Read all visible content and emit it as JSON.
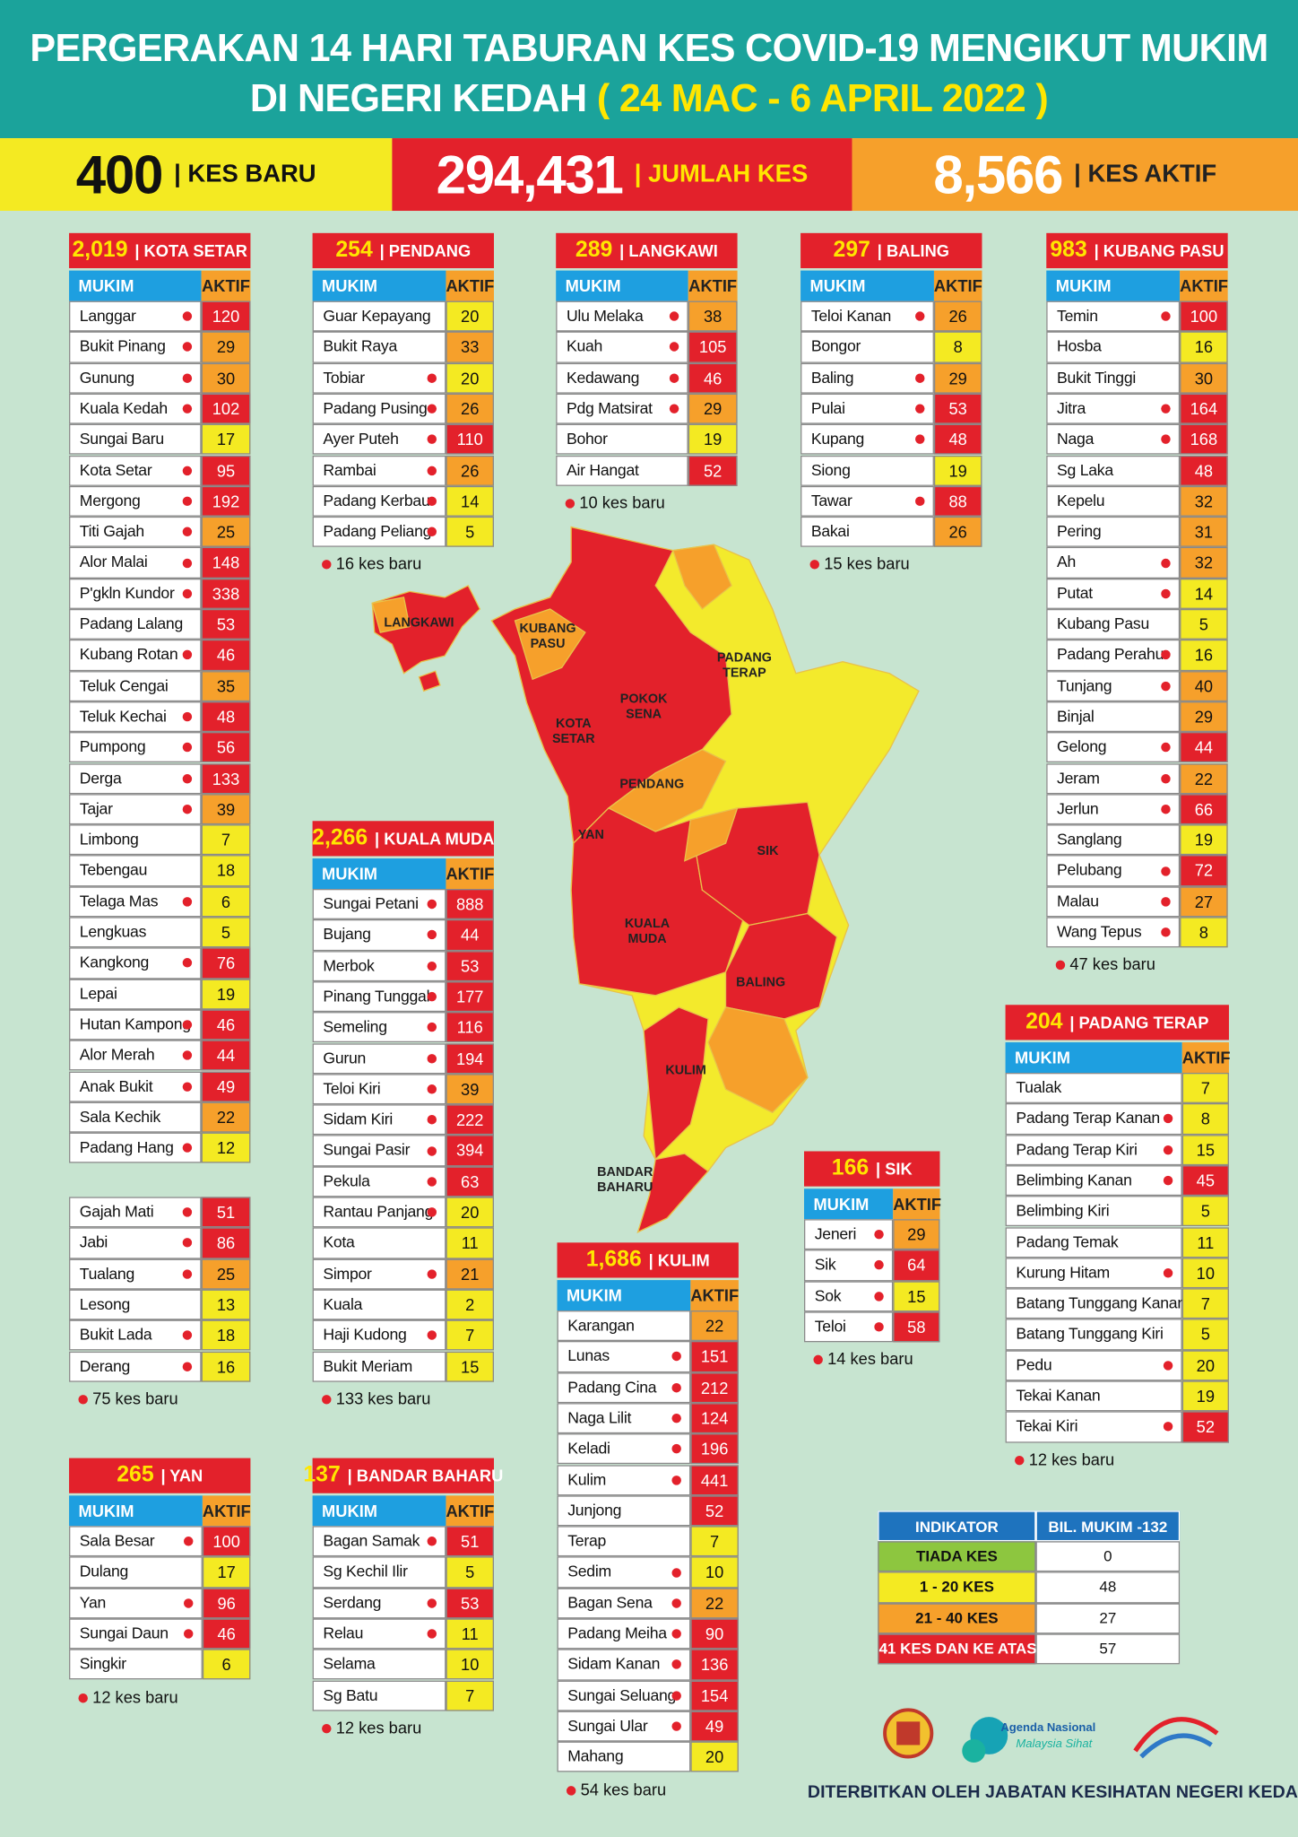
{
  "header": {
    "title": [
      "PERGERAKAN 14 HARI TABURAN KES COVID-19 MENGIKUT MUKIM",
      "DI NEGERI KEDAH"
    ],
    "date": "( 24 MAC - 6 APRIL 2022 )"
  },
  "stats": [
    {
      "value": "400",
      "label": "| KES BARU"
    },
    {
      "value": "294,431",
      "label": "| JUMLAH KES"
    },
    {
      "value": "8,566",
      "label": "| KES AKTIF"
    }
  ],
  "tables": {
    "kota_setar": {
      "total": "2,019",
      "name": "| KOTA SETAR",
      "columns": [
        "MUKIM",
        "AKTIF"
      ],
      "rows": [
        [
          "Langgar",
          120,
          true
        ],
        [
          "Bukit Pinang",
          29,
          true
        ],
        [
          "Gunung",
          30,
          true
        ],
        [
          "Kuala Kedah",
          102,
          true
        ],
        [
          "Sungai Baru",
          17,
          false
        ],
        [
          "Kota Setar",
          95,
          true
        ],
        [
          "Mergong",
          192,
          true
        ],
        [
          "Titi Gajah",
          25,
          true
        ],
        [
          "Alor Malai",
          148,
          true
        ],
        [
          "P'gkln Kundor",
          338,
          true
        ],
        [
          "Padang Lalang",
          53,
          false
        ],
        [
          "Kubang Rotan",
          46,
          true
        ],
        [
          "Teluk Cengai",
          35,
          false
        ],
        [
          "Teluk Kechai",
          48,
          true
        ],
        [
          "Pumpong",
          56,
          true
        ],
        [
          "Derga",
          133,
          true
        ],
        [
          "Tajar",
          39,
          true
        ],
        [
          "Limbong",
          7,
          false
        ],
        [
          "Tebengau",
          18,
          false
        ],
        [
          "Telaga Mas",
          6,
          true
        ],
        [
          "Lengkuas",
          5,
          false
        ],
        [
          "Kangkong",
          76,
          true
        ],
        [
          "Lepai",
          19,
          false
        ],
        [
          "Hutan Kampong",
          46,
          true
        ],
        [
          "Alor Merah",
          44,
          true
        ],
        [
          "Anak Bukit",
          49,
          true
        ],
        [
          "Sala Kechik",
          22,
          false
        ],
        [
          "Padang Hang",
          12,
          true
        ]
      ],
      "extra_rows": [
        [
          "Gajah Mati",
          51,
          true
        ],
        [
          "Jabi",
          86,
          true
        ],
        [
          "Tualang",
          25,
          true
        ],
        [
          "Lesong",
          13,
          false
        ],
        [
          "Bukit Lada",
          18,
          true
        ],
        [
          "Derang",
          16,
          true
        ]
      ],
      "note": "75 kes baru"
    },
    "pendang": {
      "total": "254",
      "name": "| PENDANG",
      "columns": [
        "MUKIM",
        "AKTIF"
      ],
      "rows": [
        [
          "Guar Kepayang",
          20,
          false
        ],
        [
          "Bukit Raya",
          33,
          false
        ],
        [
          "Tobiar",
          20,
          true
        ],
        [
          "Padang Pusing",
          26,
          true
        ],
        [
          "Ayer Puteh",
          110,
          true
        ],
        [
          "Rambai",
          26,
          true
        ],
        [
          "Padang Kerbau",
          14,
          true
        ],
        [
          "Padang Peliang",
          5,
          true
        ]
      ],
      "note": "16 kes baru"
    },
    "langkawi": {
      "total": "289",
      "name": "| LANGKAWI",
      "columns": [
        "MUKIM",
        "AKTIF"
      ],
      "rows": [
        [
          "Ulu Melaka",
          38,
          true
        ],
        [
          "Kuah",
          105,
          true
        ],
        [
          "Kedawang",
          46,
          true
        ],
        [
          "Pdg Matsirat",
          29,
          true
        ],
        [
          "Bohor",
          19,
          false
        ],
        [
          "Air Hangat",
          52,
          false
        ]
      ],
      "note": "10 kes baru"
    },
    "baling": {
      "total": "297",
      "name": "| BALING",
      "columns": [
        "MUKIM",
        "AKTIF"
      ],
      "rows": [
        [
          "Teloi Kanan",
          26,
          true
        ],
        [
          "Bongor",
          8,
          false
        ],
        [
          "Baling",
          29,
          true
        ],
        [
          "Pulai",
          53,
          true
        ],
        [
          "Kupang",
          48,
          true
        ],
        [
          "Siong",
          19,
          false
        ],
        [
          "Tawar",
          88,
          true
        ],
        [
          "Bakai",
          26,
          false
        ]
      ],
      "note": "15 kes baru"
    },
    "kubang_pasu": {
      "total": "983",
      "name": "| KUBANG PASU",
      "columns": [
        "MUKIM",
        "AKTIF"
      ],
      "rows": [
        [
          "Temin",
          100,
          true
        ],
        [
          "Hosba",
          16,
          false
        ],
        [
          "Bukit Tinggi",
          30,
          false
        ],
        [
          "Jitra",
          164,
          true
        ],
        [
          "Naga",
          168,
          true
        ],
        [
          "Sg Laka",
          48,
          false
        ],
        [
          "Kepelu",
          32,
          false
        ],
        [
          "Pering",
          31,
          false
        ],
        [
          "Ah",
          32,
          true
        ],
        [
          "Putat",
          14,
          true
        ],
        [
          "Kubang Pasu",
          5,
          false
        ],
        [
          "Padang Perahu",
          16,
          true
        ],
        [
          "Tunjang",
          40,
          true
        ],
        [
          "Binjal",
          29,
          false
        ],
        [
          "Gelong",
          44,
          true
        ],
        [
          "Jeram",
          22,
          true
        ],
        [
          "Jerlun",
          66,
          true
        ],
        [
          "Sanglang",
          19,
          false
        ],
        [
          "Pelubang",
          72,
          true
        ],
        [
          "Malau",
          27,
          true
        ],
        [
          "Wang Tepus",
          8,
          true
        ]
      ],
      "note": "47 kes baru"
    },
    "kuala_muda": {
      "total": "2,266",
      "name": "| KUALA MUDA",
      "columns": [
        "MUKIM",
        "AKTIF"
      ],
      "rows": [
        [
          "Sungai Petani",
          888,
          true
        ],
        [
          "Bujang",
          44,
          true
        ],
        [
          "Merbok",
          53,
          true
        ],
        [
          "Pinang Tunggal",
          177,
          true
        ],
        [
          "Semeling",
          116,
          true
        ],
        [
          "Gurun",
          194,
          true
        ],
        [
          "Teloi Kiri",
          39,
          true
        ],
        [
          "Sidam Kiri",
          222,
          true
        ],
        [
          "Sungai Pasir",
          394,
          true
        ],
        [
          "Pekula",
          63,
          true
        ],
        [
          "Rantau Panjang",
          20,
          true
        ],
        [
          "Kota",
          11,
          false
        ],
        [
          "Simpor",
          21,
          true
        ],
        [
          "Kuala",
          2,
          false
        ],
        [
          "Haji Kudong",
          7,
          true
        ],
        [
          "Bukit Meriam",
          15,
          false
        ]
      ],
      "note": "133 kes baru"
    },
    "padang_terap": {
      "total": "204",
      "name": "| PADANG TERAP",
      "columns": [
        "MUKIM",
        "AKTIF"
      ],
      "rows": [
        [
          "Tualak",
          7,
          false
        ],
        [
          "Padang Terap Kanan",
          8,
          true
        ],
        [
          "Padang Terap Kiri",
          15,
          true
        ],
        [
          "Belimbing Kanan",
          45,
          true
        ],
        [
          "Belimbing Kiri",
          5,
          false
        ],
        [
          "Padang Temak",
          11,
          false
        ],
        [
          "Kurung Hitam",
          10,
          true
        ],
        [
          "Batang Tunggang Kanan",
          7,
          false
        ],
        [
          "Batang Tunggang Kiri",
          5,
          false
        ],
        [
          "Pedu",
          20,
          true
        ],
        [
          "Tekai Kanan",
          19,
          false
        ],
        [
          "Tekai Kiri",
          52,
          true
        ]
      ],
      "note": "12 kes baru"
    },
    "sik": {
      "total": "166",
      "name": "| SIK",
      "columns": [
        "MUKIM",
        "AKTIF"
      ],
      "rows": [
        [
          "Jeneri",
          29,
          true
        ],
        [
          "Sik",
          64,
          true
        ],
        [
          "Sok",
          15,
          true
        ],
        [
          "Teloi",
          58,
          true
        ]
      ],
      "note": "14 kes baru"
    },
    "kulim": {
      "total": "1,686",
      "name": "| KULIM",
      "columns": [
        "MUKIM",
        "AKTIF"
      ],
      "rows": [
        [
          "Karangan",
          22,
          false
        ],
        [
          "Lunas",
          151,
          true
        ],
        [
          "Padang Cina",
          212,
          true
        ],
        [
          "Naga Lilit",
          124,
          true
        ],
        [
          "Keladi",
          196,
          true
        ],
        [
          "Kulim",
          441,
          true
        ],
        [
          "Junjong",
          52,
          false
        ],
        [
          "Terap",
          7,
          false
        ],
        [
          "Sedim",
          10,
          true
        ],
        [
          "Bagan Sena",
          22,
          true
        ],
        [
          "Padang Meiha",
          90,
          true
        ],
        [
          "Sidam Kanan",
          136,
          true
        ],
        [
          "Sungai Seluang",
          154,
          true
        ],
        [
          "Sungai Ular",
          49,
          true
        ],
        [
          "Mahang",
          20,
          false
        ]
      ],
      "note": "54 kes baru"
    },
    "yan": {
      "total": "265",
      "name": "| YAN",
      "columns": [
        "MUKIM",
        "AKTIF"
      ],
      "rows": [
        [
          "Sala Besar",
          100,
          true
        ],
        [
          "Dulang",
          17,
          false
        ],
        [
          "Yan",
          96,
          true
        ],
        [
          "Sungai Daun",
          46,
          true
        ],
        [
          "Singkir",
          6,
          false
        ]
      ],
      "note": "12 kes baru"
    },
    "bandar_baharu": {
      "total": "137",
      "name": "| BANDAR BAHARU",
      "columns": [
        "MUKIM",
        "AKTIF"
      ],
      "rows": [
        [
          "Bagan Samak",
          51,
          true
        ],
        [
          "Sg Kechil Ilir",
          5,
          false
        ],
        [
          "Serdang",
          53,
          true
        ],
        [
          "Relau",
          11,
          true
        ],
        [
          "Selama",
          10,
          false
        ],
        [
          "Sg Batu",
          7,
          false
        ]
      ],
      "note": "12 kes baru"
    }
  },
  "indicator": {
    "columns": [
      "INDIKATOR",
      "BIL. MUKIM -132"
    ],
    "rows": [
      {
        "label": "TIADA KES",
        "count": 0,
        "color": "#8dc63f"
      },
      {
        "label": "1 - 20 KES",
        "count": 48,
        "color": "#f4ea22"
      },
      {
        "label": "21 - 40 KES",
        "count": 27,
        "color": "#f6a02b"
      },
      {
        "label": "41 KES DAN KE ATAS",
        "count": 57,
        "color": "#e3212b"
      }
    ]
  },
  "map": {
    "labels": [
      [
        "LANGKAWI"
      ],
      [
        "KUBANG",
        "PASU"
      ],
      [
        "PADANG",
        "TERAP"
      ],
      [
        "POKOK",
        "SENA"
      ],
      [
        "KOTA",
        "SETAR"
      ],
      [
        "PENDANG"
      ],
      [
        "YAN"
      ],
      [
        "SIK"
      ],
      [
        "KUALA",
        "MUDA"
      ],
      [
        "BALING"
      ],
      [
        "KULIM"
      ],
      [
        "BANDAR",
        "BAHARU"
      ]
    ]
  },
  "logos": [
    "Agenda Nasional",
    "Malaysia Sihat"
  ],
  "footer": "DITERBITKAN OLEH JABATAN KESIHATAN NEGERI KEDAH"
}
